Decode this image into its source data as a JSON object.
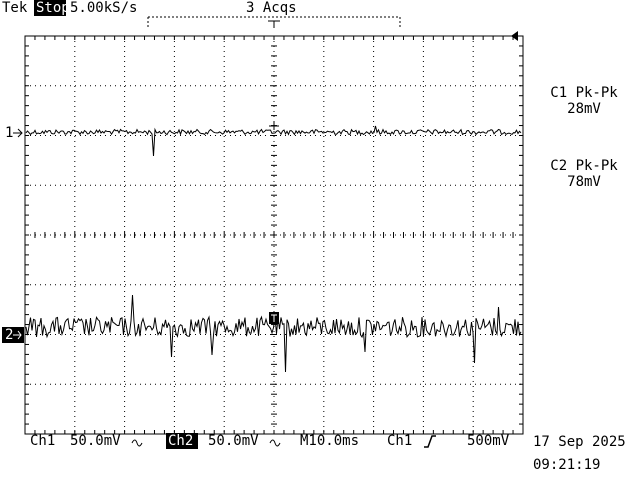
{
  "header": {
    "brand": "Tek",
    "status": "Stop:",
    "sample_rate": "5.00kS/s",
    "acquisitions": "3 Acqs"
  },
  "markers": {
    "ch1": "1",
    "ch2": "2"
  },
  "measurements": [
    {
      "label": "C1 Pk-Pk",
      "value": "28mV"
    },
    {
      "label": "C2 Pk-Pk",
      "value": "78mV"
    }
  ],
  "footer": {
    "ch1_label": "Ch1",
    "ch1_scale": "50.0mV",
    "ch2_label": "Ch2",
    "ch2_scale": "50.0mV",
    "timebase": "M10.0ms",
    "trigger_source": "Ch1",
    "trigger_level": "500mV"
  },
  "timestamp": {
    "date": "17 Sep 2025",
    "time": "09:21:19"
  }
}
